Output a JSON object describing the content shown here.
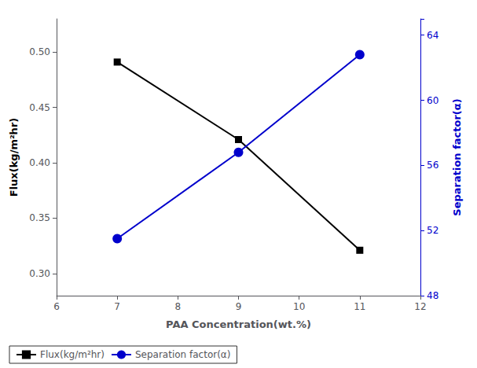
{
  "chart_data": {
    "type": "line",
    "xlabel": "PAA Concentration(wt.%)",
    "ylabel": "Flux(kg/m²hr)",
    "y2label": "Separation factor(α)",
    "x": [
      7,
      9,
      11
    ],
    "series": [
      {
        "name": "Flux(kg/m²hr)",
        "color": "#000000",
        "marker": "square",
        "values": [
          0.491,
          0.421,
          0.321
        ]
      },
      {
        "name": "Separation factor(α)",
        "color": "#0000cc",
        "marker": "circle",
        "axis": "y2",
        "values": [
          51.5,
          56.8,
          62.8
        ]
      }
    ],
    "xlim": [
      6,
      12
    ],
    "xticks": [
      6,
      7,
      8,
      9,
      10,
      11,
      12
    ],
    "ylim": [
      0.28,
      0.53
    ],
    "yticks": [
      {
        "value": 0.3,
        "label": "0.30"
      },
      0.35,
      {
        "value": 0.4,
        "label": "0.40"
      },
      0.45,
      {
        "value": 0.5,
        "label": "0.50"
      }
    ],
    "y2lim": [
      48,
      65
    ],
    "y2ticks": [
      48,
      52,
      56,
      60,
      64
    ],
    "grid": false,
    "legend": "lower left"
  }
}
